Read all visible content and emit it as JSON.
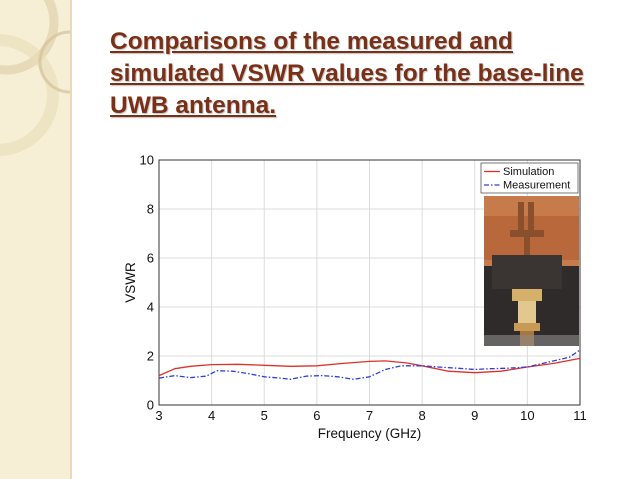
{
  "slide": {
    "title": "Comparisons of the measured and simulated VSWR values for the base-line UWB antenna."
  },
  "chart_data": {
    "type": "line",
    "xlabel": "Frequency (GHz)",
    "ylabel": "VSWR",
    "xlim": [
      3,
      11
    ],
    "ylim": [
      0,
      10
    ],
    "xticks": [
      3,
      4,
      5,
      6,
      7,
      8,
      9,
      10,
      11
    ],
    "yticks": [
      0,
      2,
      4,
      6,
      8,
      10
    ],
    "grid": true,
    "legend_position": "top-right",
    "inset_photo": "antenna-photo",
    "series": [
      {
        "name": "Simulation",
        "color": "#e0302a",
        "style": "solid",
        "x": [
          3,
          3.3,
          3.6,
          4,
          4.5,
          5,
          5.5,
          6,
          6.5,
          7,
          7.3,
          7.7,
          8,
          8.5,
          9,
          9.5,
          10,
          10.5,
          11
        ],
        "y": [
          1.2,
          1.48,
          1.58,
          1.65,
          1.66,
          1.62,
          1.58,
          1.6,
          1.7,
          1.78,
          1.8,
          1.72,
          1.6,
          1.38,
          1.32,
          1.38,
          1.55,
          1.7,
          1.9
        ]
      },
      {
        "name": "Measurement",
        "color": "#2b3fd9",
        "style": "dashed",
        "x": [
          3,
          3.3,
          3.6,
          3.9,
          4.1,
          4.4,
          4.7,
          5,
          5.3,
          5.5,
          5.8,
          6.1,
          6.4,
          6.7,
          7,
          7.3,
          7.6,
          8,
          8.3,
          8.7,
          9,
          9.3,
          9.6,
          10,
          10.4,
          10.8,
          11
        ],
        "y": [
          1.1,
          1.2,
          1.12,
          1.18,
          1.4,
          1.38,
          1.28,
          1.15,
          1.1,
          1.05,
          1.18,
          1.2,
          1.15,
          1.05,
          1.15,
          1.45,
          1.6,
          1.6,
          1.55,
          1.5,
          1.45,
          1.48,
          1.5,
          1.55,
          1.75,
          1.95,
          2.25
        ]
      }
    ]
  }
}
